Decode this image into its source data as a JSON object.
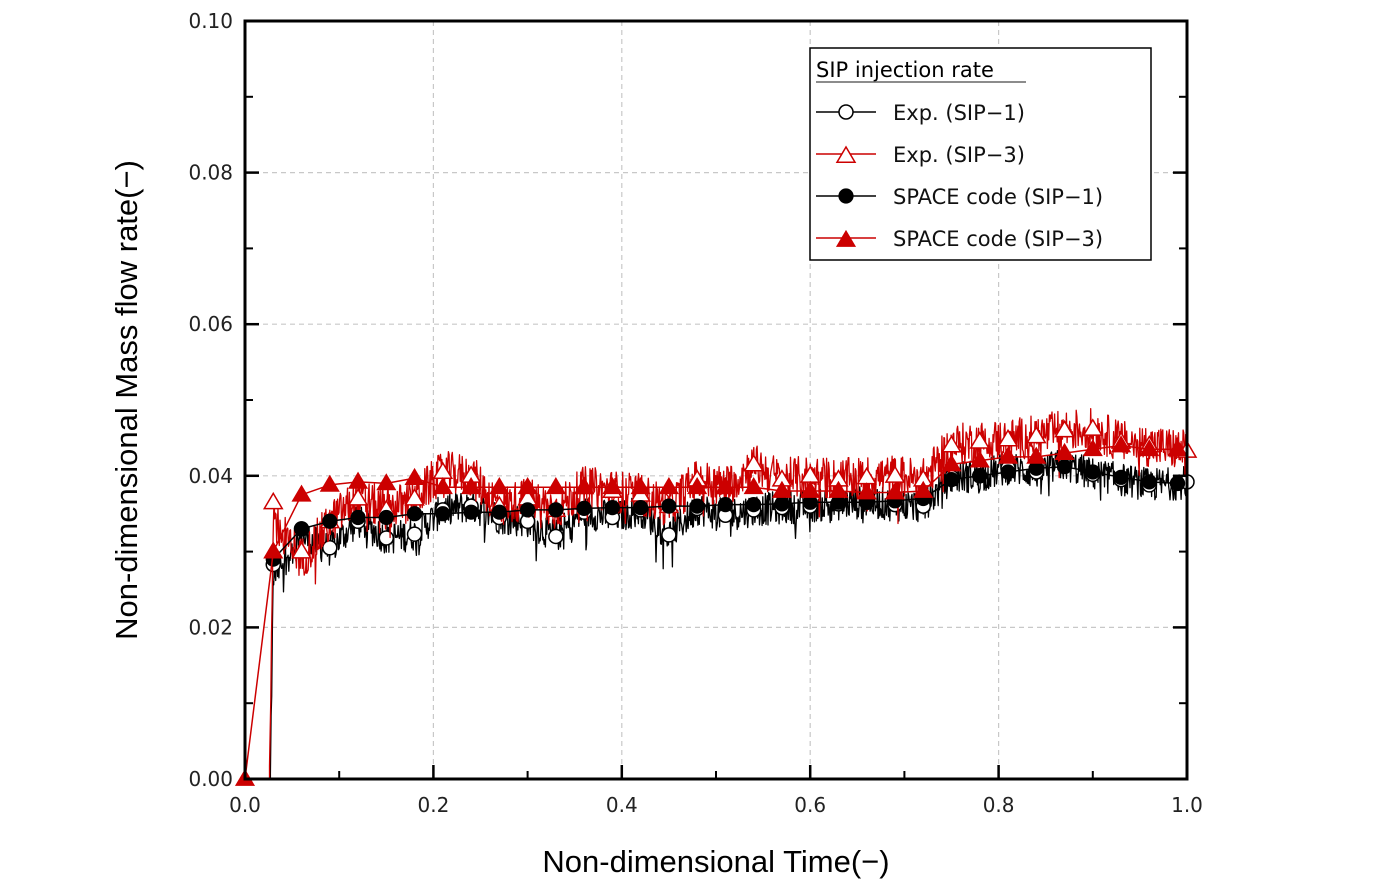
{
  "chart_data": {
    "type": "line",
    "title": "",
    "xlabel": "Non-dimensional Time(−)",
    "ylabel": "Non-dimensional Mass flow rate(−)",
    "xlim": [
      0.0,
      1.0
    ],
    "ylim": [
      0.0,
      0.1
    ],
    "xticks": [
      0.0,
      0.2,
      0.4,
      0.6,
      0.8,
      1.0
    ],
    "xtick_labels": [
      "0.0",
      "0.2",
      "0.4",
      "0.6",
      "0.8",
      "1.0"
    ],
    "yticks": [
      0.0,
      0.02,
      0.04,
      0.06,
      0.08,
      0.1
    ],
    "ytick_labels": [
      "0.00",
      "0.02",
      "0.04",
      "0.06",
      "0.08",
      "0.10"
    ],
    "grid": true,
    "legend": {
      "title": "SIP injection rate",
      "placement": "top-right",
      "entries": [
        "Exp. (SIP−1)",
        "Exp. (SIP−3)",
        "SPACE code (SIP−1)",
        "SPACE code (SIP−3)"
      ]
    },
    "series": [
      {
        "name": "Exp. (SIP−1)",
        "color": "#000000",
        "marker": "open-circle",
        "noisy": true,
        "x": [
          0.0,
          0.027,
          0.03,
          0.06,
          0.09,
          0.12,
          0.15,
          0.18,
          0.21,
          0.24,
          0.27,
          0.3,
          0.33,
          0.36,
          0.39,
          0.42,
          0.45,
          0.48,
          0.51,
          0.54,
          0.57,
          0.6,
          0.63,
          0.66,
          0.69,
          0.72,
          0.75,
          0.78,
          0.81,
          0.84,
          0.87,
          0.9,
          0.93,
          0.96,
          0.99,
          1.0
        ],
        "y": [
          0.0,
          0.0,
          0.0283,
          0.033,
          0.0305,
          0.034,
          0.0318,
          0.0323,
          0.0355,
          0.036,
          0.0345,
          0.034,
          0.032,
          0.0352,
          0.0345,
          0.0355,
          0.0322,
          0.0357,
          0.0348,
          0.0355,
          0.0358,
          0.036,
          0.0363,
          0.0365,
          0.0362,
          0.036,
          0.0398,
          0.04,
          0.041,
          0.0405,
          0.0415,
          0.0402,
          0.0395,
          0.0388,
          0.039,
          0.0392
        ]
      },
      {
        "name": "Exp. (SIP−3)",
        "color": "#cc0000",
        "marker": "open-triangle",
        "noisy": true,
        "x": [
          0.0,
          0.026,
          0.03,
          0.06,
          0.09,
          0.12,
          0.15,
          0.18,
          0.21,
          0.24,
          0.27,
          0.3,
          0.33,
          0.36,
          0.39,
          0.42,
          0.45,
          0.48,
          0.51,
          0.54,
          0.57,
          0.6,
          0.63,
          0.66,
          0.69,
          0.72,
          0.75,
          0.78,
          0.81,
          0.84,
          0.87,
          0.9,
          0.93,
          0.96,
          0.99,
          1.0
        ],
        "y": [
          0.0,
          0.0,
          0.0365,
          0.03,
          0.034,
          0.037,
          0.0355,
          0.037,
          0.0405,
          0.04,
          0.036,
          0.037,
          0.0355,
          0.0385,
          0.038,
          0.0375,
          0.036,
          0.0395,
          0.0385,
          0.0415,
          0.0395,
          0.04,
          0.0395,
          0.0398,
          0.04,
          0.0395,
          0.044,
          0.0445,
          0.0448,
          0.0452,
          0.046,
          0.0462,
          0.0445,
          0.044,
          0.0435,
          0.0433
        ]
      },
      {
        "name": "SPACE code (SIP−1)",
        "color": "#000000",
        "marker": "filled-circle",
        "noisy": false,
        "x": [
          0.03,
          0.06,
          0.09,
          0.12,
          0.15,
          0.18,
          0.21,
          0.24,
          0.27,
          0.3,
          0.33,
          0.36,
          0.39,
          0.42,
          0.45,
          0.48,
          0.51,
          0.54,
          0.57,
          0.6,
          0.63,
          0.66,
          0.69,
          0.72,
          0.75,
          0.78,
          0.81,
          0.84,
          0.87,
          0.9,
          0.93,
          0.96,
          0.99
        ],
        "y": [
          0.029,
          0.033,
          0.034,
          0.0345,
          0.0345,
          0.035,
          0.035,
          0.0352,
          0.0352,
          0.0355,
          0.0355,
          0.0357,
          0.0358,
          0.0358,
          0.036,
          0.036,
          0.0362,
          0.0362,
          0.0363,
          0.0365,
          0.0365,
          0.0365,
          0.0367,
          0.037,
          0.0395,
          0.04,
          0.0405,
          0.041,
          0.0412,
          0.0405,
          0.0398,
          0.0392,
          0.039
        ]
      },
      {
        "name": "SPACE code (SIP−3)",
        "color": "#cc0000",
        "marker": "filled-triangle",
        "noisy": false,
        "x": [
          0.0,
          0.03,
          0.06,
          0.09,
          0.12,
          0.15,
          0.18,
          0.21,
          0.24,
          0.27,
          0.3,
          0.33,
          0.36,
          0.39,
          0.42,
          0.45,
          0.48,
          0.51,
          0.54,
          0.57,
          0.6,
          0.63,
          0.66,
          0.69,
          0.72,
          0.75,
          0.78,
          0.81,
          0.84,
          0.87,
          0.9,
          0.93,
          0.96,
          0.99
        ],
        "y": [
          0.0,
          0.03,
          0.0375,
          0.0388,
          0.0392,
          0.039,
          0.0397,
          0.0385,
          0.0385,
          0.0385,
          0.0385,
          0.0385,
          0.0385,
          0.0385,
          0.0385,
          0.0385,
          0.0385,
          0.0385,
          0.0385,
          0.038,
          0.038,
          0.038,
          0.0378,
          0.0378,
          0.038,
          0.0415,
          0.042,
          0.0425,
          0.0425,
          0.043,
          0.0435,
          0.044,
          0.0435,
          0.0435
        ]
      }
    ]
  }
}
